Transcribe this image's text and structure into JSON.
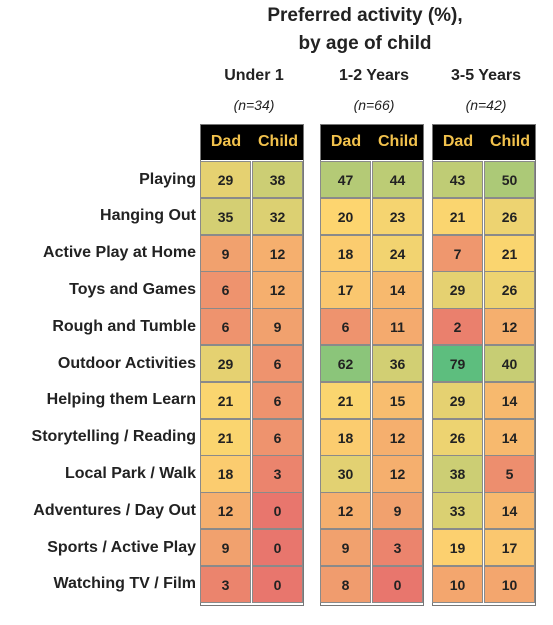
{
  "chart_data": {
    "type": "table",
    "title_line1": "Preferred activity (%),",
    "title_line2": "by age of child",
    "subcolumns": [
      "Dad",
      "Child"
    ],
    "groups": [
      {
        "label": "Under 1",
        "n": "(n=34)"
      },
      {
        "label": "1-2 Years",
        "n": "(n=66)"
      },
      {
        "label": "3-5 Years",
        "n": "(n=42)"
      }
    ],
    "rows": [
      {
        "label": "Playing",
        "values": [
          29,
          38,
          47,
          44,
          43,
          50
        ]
      },
      {
        "label": "Hanging Out",
        "values": [
          35,
          32,
          20,
          23,
          21,
          26
        ]
      },
      {
        "label": "Active Play at Home",
        "values": [
          9,
          12,
          18,
          24,
          7,
          21
        ]
      },
      {
        "label": "Toys and Games",
        "values": [
          6,
          12,
          17,
          14,
          29,
          26
        ]
      },
      {
        "label": "Rough and Tumble",
        "values": [
          6,
          9,
          6,
          11,
          2,
          12
        ]
      },
      {
        "label": "Outdoor Activities",
        "values": [
          29,
          6,
          62,
          36,
          79,
          40
        ]
      },
      {
        "label": "Helping them Learn",
        "values": [
          21,
          6,
          21,
          15,
          29,
          14
        ]
      },
      {
        "label": "Storytelling / Reading",
        "values": [
          21,
          6,
          18,
          12,
          26,
          14
        ]
      },
      {
        "label": "Local Park / Walk",
        "values": [
          18,
          3,
          30,
          12,
          38,
          5
        ]
      },
      {
        "label": "Adventures / Day Out",
        "values": [
          12,
          0,
          12,
          9,
          33,
          14
        ]
      },
      {
        "label": "Sports / Active Play",
        "values": [
          9,
          0,
          9,
          3,
          19,
          17
        ]
      },
      {
        "label": "Watching TV / Film",
        "values": [
          3,
          0,
          8,
          0,
          10,
          10
        ]
      }
    ],
    "colors": {
      "header_bg": "#000000",
      "header_text": "#f2c24c",
      "scale_low": "#e8766d",
      "scale_mid": "#fdd56f",
      "scale_high": "#5dbe7e"
    }
  }
}
